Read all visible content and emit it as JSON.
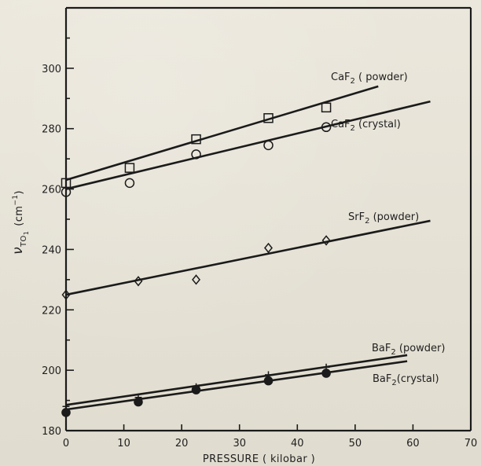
{
  "chart_data": {
    "type": "scatter",
    "xlabel": "PRESSURE ( kilobar )",
    "ylabel_parts": {
      "nu": "ν",
      "subscript": "TO",
      "sub_digit": "1",
      "unit": "(cm",
      "superscript": "−1",
      "close": ")"
    },
    "xlim": [
      0,
      70
    ],
    "ylim": [
      180,
      320
    ],
    "x_ticks": [
      0,
      10,
      20,
      30,
      40,
      50,
      60,
      70
    ],
    "x_tick_labels": [
      "0",
      "10",
      "20",
      "30",
      "40",
      "50",
      "60",
      "70"
    ],
    "y_ticks": [
      180,
      200,
      220,
      240,
      260,
      280,
      300
    ],
    "y_tick_labels": [
      "180",
      "200",
      "220",
      "240",
      "260",
      "280",
      "300"
    ],
    "y_minor_ticks": [
      190,
      210,
      230,
      250,
      270,
      290,
      310
    ],
    "series": [
      {
        "name": "CaF2 ( powder)",
        "label_base": "CaF",
        "label_sub": "2",
        "label_rest": " ( powder)",
        "marker": "square",
        "points": [
          {
            "x": 0,
            "y": 262
          },
          {
            "x": 11,
            "y": 267
          },
          {
            "x": 22.5,
            "y": 276.5
          },
          {
            "x": 35,
            "y": 283.5
          },
          {
            "x": 45,
            "y": 287
          }
        ],
        "fit": {
          "x": [
            0,
            54
          ],
          "y": [
            263,
            294
          ]
        }
      },
      {
        "name": "CaF2 (crystal)",
        "label_base": "CaF",
        "label_sub": "2",
        "label_rest": " (crystal)",
        "marker": "circle",
        "points": [
          {
            "x": 0,
            "y": 259
          },
          {
            "x": 11,
            "y": 262
          },
          {
            "x": 22.5,
            "y": 271.5
          },
          {
            "x": 35,
            "y": 274.5
          },
          {
            "x": 45,
            "y": 280.5
          }
        ],
        "fit": {
          "x": [
            0,
            63
          ],
          "y": [
            260,
            289
          ]
        }
      },
      {
        "name": "SrF2 (powder)",
        "label_base": "SrF",
        "label_sub": "2",
        "label_rest": " (powder)",
        "marker": "diamond",
        "points": [
          {
            "x": 0,
            "y": 225
          },
          {
            "x": 12.5,
            "y": 229.5
          },
          {
            "x": 22.5,
            "y": 230
          },
          {
            "x": 35,
            "y": 240.5
          },
          {
            "x": 45,
            "y": 243
          }
        ],
        "fit": {
          "x": [
            0,
            63
          ],
          "y": [
            225,
            249.5
          ]
        }
      },
      {
        "name": "BaF2 (powder)",
        "label_base": "BaF",
        "label_sub": "2",
        "label_rest": " (powder)",
        "marker": "plus",
        "points": [
          {
            "x": 0,
            "y": 188
          },
          {
            "x": 12.5,
            "y": 191
          },
          {
            "x": 22.5,
            "y": 194.5
          },
          {
            "x": 35,
            "y": 198.5
          },
          {
            "x": 45,
            "y": 201
          }
        ],
        "fit": {
          "x": [
            0,
            59
          ],
          "y": [
            188.5,
            205
          ]
        }
      },
      {
        "name": "BaF2(crystal)",
        "label_base": "BaF",
        "label_sub": "2",
        "label_rest": "(crystal)",
        "marker": "dot",
        "points": [
          {
            "x": 0,
            "y": 186
          },
          {
            "x": 12.5,
            "y": 189.5
          },
          {
            "x": 22.5,
            "y": 193.5
          },
          {
            "x": 35,
            "y": 196.5
          },
          {
            "x": 45,
            "y": 199
          }
        ],
        "fit": {
          "x": [
            0,
            59
          ],
          "y": [
            187,
            203
          ]
        }
      }
    ]
  }
}
